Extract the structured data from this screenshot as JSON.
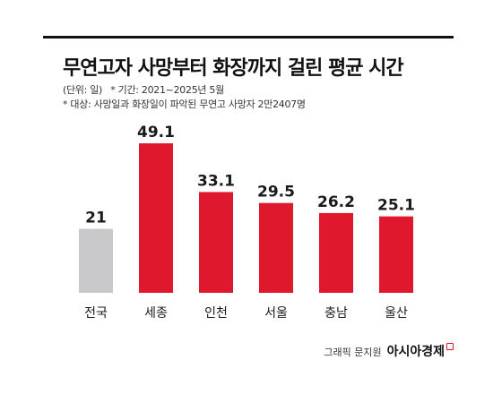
{
  "title": "무연고자 사망부터 화장까지 걸린 평균 시간",
  "unit_note": "(단위: 일)",
  "period_note": "* 기간: 2021~2025년 5월",
  "subject_note": "* 대상: 사망일과 화장일이 파악된 무연고 사망자 2만2407명",
  "credit": {
    "graphic_label": "그래픽 문지원",
    "brand": "아시아경제"
  },
  "colors": {
    "highlight": "#e0182d",
    "baseline": "#c8c8ca"
  },
  "chart_data": {
    "type": "bar",
    "categories": [
      "전국",
      "세종",
      "인천",
      "서울",
      "충남",
      "울산"
    ],
    "values": [
      21,
      49.1,
      33.1,
      29.5,
      26.2,
      25.1
    ],
    "value_labels": [
      "21",
      "49.1",
      "33.1",
      "29.5",
      "26.2",
      "25.1"
    ],
    "bar_colors": [
      "#c8c8ca",
      "#e0182d",
      "#e0182d",
      "#e0182d",
      "#e0182d",
      "#e0182d"
    ],
    "title": "무연고자 사망부터 화장까지 걸린 평균 시간",
    "xlabel": "",
    "ylabel": "",
    "ylim": [
      0,
      50
    ],
    "grid": false,
    "legend": "none"
  }
}
